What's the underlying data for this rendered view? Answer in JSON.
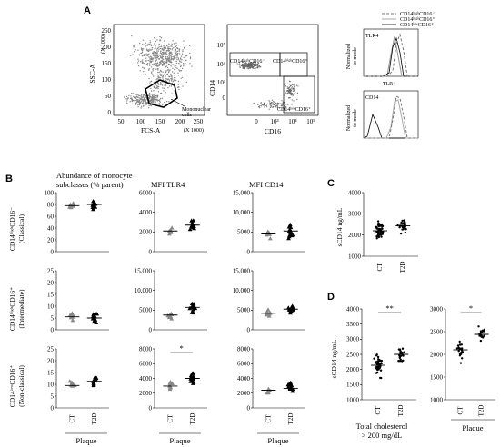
{
  "panels": {
    "A": {
      "label": "A",
      "flow1": {
        "ylabel": "SSC-A",
        "ymult": "(X 1000)",
        "xlabel": "FCS-A",
        "xmult": "(X 1000)",
        "gate_label_1": "Mononuclear",
        "gate_label_2": "cells",
        "ticks_y": [
          "250",
          "200",
          "150",
          "100",
          "50",
          "0"
        ],
        "ticks_x": [
          "50",
          "100",
          "150",
          "200",
          "250"
        ]
      },
      "flow2": {
        "ylabel": "CD14",
        "xlabel": "CD16",
        "g1": "CD14ʰⁱᵍʰCD16⁻",
        "g2": "CD14ʰⁱᵍʰCD16⁺",
        "g3": "CD14ˡᵒʷCD16⁺",
        "ticks_y": [
          "10⁵",
          "10⁴",
          "10³",
          "0"
        ],
        "ticks_x": [
          "0",
          "10³",
          "10⁴",
          "10⁵"
        ]
      },
      "hist": {
        "legend": [
          "CD14ʰⁱᵍʰCD16⁻",
          "CD14ʰⁱᵍʰCD16⁺",
          "CD14ˡᵒʷCD16⁺"
        ],
        "top_title": "TLR4",
        "top_xlabel": "TLR4",
        "bot_title": "CD14",
        "ylabel_1": "Normalized",
        "ylabel_2": "to mode",
        "ticks_y": [
          "100",
          "80",
          "60",
          "40",
          "20",
          "0"
        ],
        "ticks_x": [
          "0",
          "10³",
          "10⁴",
          "10⁵"
        ]
      }
    },
    "B": {
      "label": "B",
      "col_titles": [
        "Abundance of monocyte",
        "subclasses (% parent)",
        "MFI TLR4",
        "MFI CD14"
      ],
      "row_labels": [
        {
          "l1": "CD14ʰⁱᵍʰCD16⁻",
          "l2": "(Classical)"
        },
        {
          "l1": "CD14ʰⁱᵍʰCD16⁺",
          "l2": "(Intermediate)"
        },
        {
          "l1": "CD14ˡᵒʷCD16⁺",
          "l2": "(Non-classical)"
        }
      ],
      "yticks": {
        "abund": [
          "25",
          "20",
          "15",
          "10",
          "5",
          "0"
        ],
        "tlr4_r1": [
          "6000",
          "4000",
          "2000",
          "0"
        ],
        "tlr4_r2": [
          "15,000",
          "10,000",
          "5000",
          "0"
        ],
        "tlr4_r3": [
          "8000",
          "6000",
          "4000",
          "2000",
          "0"
        ],
        "cd14_r1": [
          "15,000",
          "10,000",
          "5000",
          "0"
        ],
        "cd14_r2": [
          "15,000",
          "10,000",
          "5000",
          "0"
        ],
        "cd14_r3": [
          "8000",
          "6000",
          "4000",
          "2000",
          "0"
        ]
      },
      "abund_r1_ticks": [
        "100",
        "80",
        "60",
        "40",
        "20",
        "0"
      ],
      "abund_r2_ticks": [
        "25",
        "20",
        "15",
        "10",
        "5",
        "0"
      ],
      "xcats": [
        "CT",
        "T2D"
      ],
      "group": "Plaque",
      "sig": "*"
    },
    "C": {
      "label": "C",
      "ylabel": "sCD14 ng/mL",
      "yticks": [
        "4000",
        "3000",
        "2000",
        "1000"
      ],
      "xcats": [
        "CT",
        "T2D"
      ]
    },
    "D": {
      "label": "D",
      "ylabel": "sCD14 ng/mL",
      "yticks": [
        "4000",
        "3500",
        "3000",
        "2500",
        "2000",
        "1500",
        "1000"
      ],
      "xcats": [
        "CT",
        "T2D"
      ],
      "sig_left": "**",
      "sig_right": "*",
      "cap_left_1": "Total cholesterol",
      "cap_left_2": "> 200 mg/dL",
      "cap_right": "Plaque"
    }
  },
  "chart_data": [
    {
      "type": "scatter",
      "panel": "C",
      "categories": [
        "CT",
        "T2D"
      ],
      "ylabel": "sCD14 ng/mL",
      "ylim": [
        1000,
        4000
      ],
      "series": [
        {
          "name": "CT",
          "median": 2200
        },
        {
          "name": "T2D",
          "median": 2450
        }
      ]
    },
    {
      "type": "scatter",
      "panel": "D-left",
      "categories": [
        "CT",
        "T2D"
      ],
      "ylabel": "sCD14 ng/mL",
      "ylim": [
        1000,
        4000
      ],
      "series": [
        {
          "name": "CT",
          "median": 2150
        },
        {
          "name": "T2D",
          "median": 2500
        }
      ]
    },
    {
      "type": "scatter",
      "panel": "D-right",
      "categories": [
        "CT",
        "T2D"
      ],
      "ylim": [
        1000,
        3000
      ],
      "series": [
        {
          "name": "CT",
          "median": 2100
        },
        {
          "name": "T2D",
          "median": 2450
        }
      ]
    }
  ]
}
